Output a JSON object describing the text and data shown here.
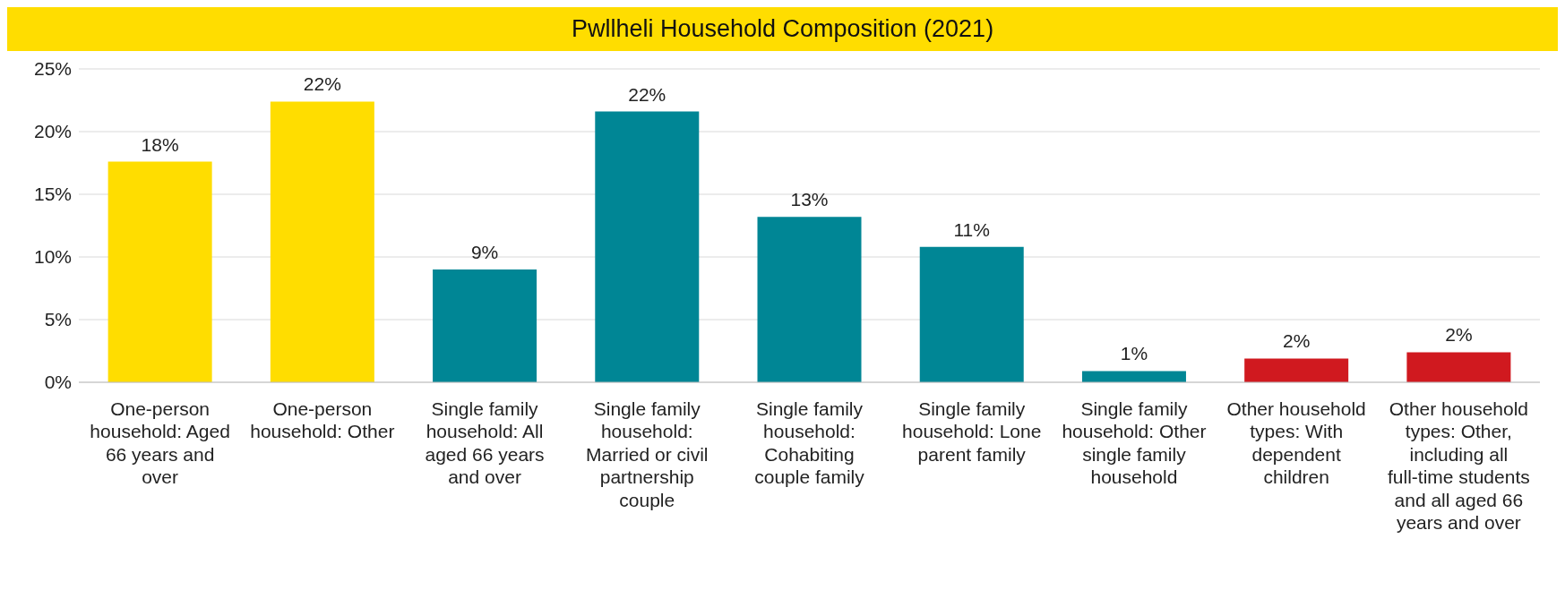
{
  "chart_data": {
    "type": "bar",
    "title": "Pwllheli Household Composition (2021)",
    "categories": [
      "One-person household: Aged 66 years and over",
      "One-person household: Other",
      "Single family household: All aged 66 years and over",
      "Single family household: Married or civil partnership couple",
      "Single family household: Cohabiting couple family",
      "Single family household: Lone parent family",
      "Single family household: Other single family household",
      "Other household types: With dependent children",
      "Other household types: Other, including all full-time students and all aged 66 years and over"
    ],
    "values": [
      17.6,
      22.4,
      9.0,
      21.6,
      13.2,
      10.8,
      0.9,
      1.9,
      2.4
    ],
    "colors": [
      "#ffdd00",
      "#ffdd00",
      "#008695",
      "#008695",
      "#008695",
      "#008695",
      "#008695",
      "#d0191f",
      "#d0191f"
    ],
    "value_labels": [
      "18%",
      "22%",
      "9%",
      "22%",
      "13%",
      "11%",
      "1%",
      "2%",
      "2%"
    ],
    "ylim": [
      0,
      25
    ],
    "yticks": [
      {
        "value": 0,
        "label": "0%"
      },
      {
        "value": 5,
        "label": "5%"
      },
      {
        "value": 10,
        "label": "10%"
      },
      {
        "value": 15,
        "label": "15%"
      },
      {
        "value": 20,
        "label": "20%"
      },
      {
        "value": 25,
        "label": "25%"
      }
    ],
    "grid": "y"
  }
}
